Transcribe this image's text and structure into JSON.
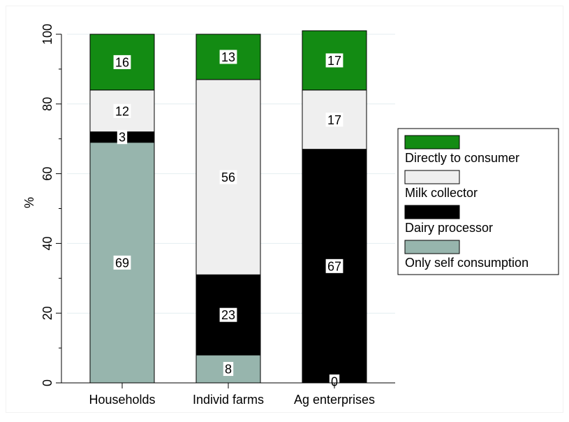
{
  "chart_data": {
    "type": "bar",
    "stacked": true,
    "categories": [
      "Households",
      "Individ farms",
      "Ag enterprises"
    ],
    "series": [
      {
        "name": "Only self consumption",
        "values": [
          69,
          8,
          0
        ],
        "color": "#97b5ad"
      },
      {
        "name": "Dairy processor",
        "values": [
          3,
          23,
          67
        ],
        "color": "#000000"
      },
      {
        "name": "Milk collector",
        "values": [
          12,
          56,
          17
        ],
        "color": "#efefef"
      },
      {
        "name": "Directly to consumer",
        "values": [
          16,
          13,
          17
        ],
        "color": "#138b13"
      }
    ],
    "data_labels": [
      [
        "69",
        "3",
        "12",
        "16"
      ],
      [
        "8",
        "23",
        "56",
        "13"
      ],
      [
        "0",
        "67",
        "17",
        "17"
      ]
    ],
    "legend_order": [
      "Directly to consumer",
      "Milk collector",
      "Dairy processor",
      "Only self consumption"
    ],
    "ylabel": "%",
    "xlabel": "",
    "yticks": [
      0,
      20,
      40,
      60,
      80,
      100
    ],
    "ylim": [
      0,
      100
    ],
    "grid": true,
    "legend_position": "right"
  }
}
